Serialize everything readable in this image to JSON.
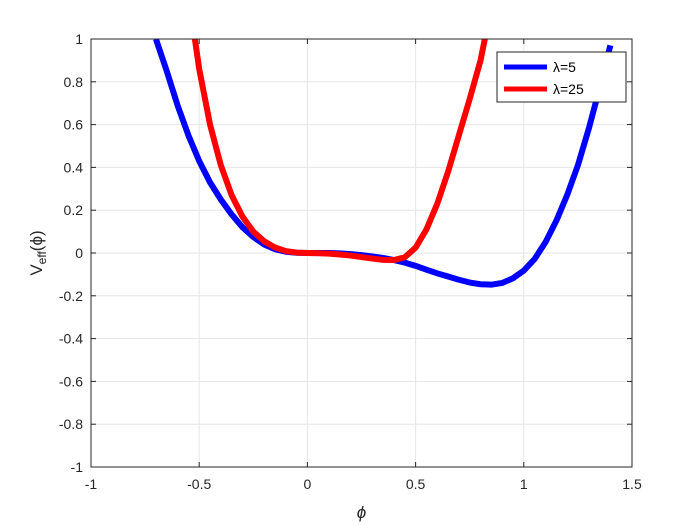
{
  "chart_data": {
    "type": "line",
    "xlabel": "ϕ",
    "ylabel_main": "V",
    "ylabel_sub": "eff",
    "ylabel_arg": "(ϕ)",
    "xlim": [
      -1,
      1.5
    ],
    "ylim": [
      -1,
      1
    ],
    "xticks": [
      -1,
      -0.5,
      0,
      0.5,
      1,
      1.5
    ],
    "xtick_labels": [
      "-1",
      "-0.5",
      "0",
      "0.5",
      "1",
      "1.5"
    ],
    "yticks": [
      -1,
      -0.8,
      -0.6,
      -0.4,
      -0.2,
      0,
      0.2,
      0.4,
      0.6,
      0.8,
      1
    ],
    "ytick_labels": [
      "-1",
      "-0.8",
      "-0.6",
      "-0.4",
      "-0.2",
      "0",
      "0.2",
      "0.4",
      "0.6",
      "0.8",
      "1"
    ],
    "grid": true,
    "legend_position": "top-right",
    "series": [
      {
        "name": "λ=5",
        "color": "#0000ff",
        "x": [
          -0.7,
          -0.65,
          -0.6,
          -0.55,
          -0.5,
          -0.45,
          -0.4,
          -0.35,
          -0.3,
          -0.25,
          -0.2,
          -0.15,
          -0.1,
          -0.05,
          0,
          0.05,
          0.1,
          0.15,
          0.2,
          0.25,
          0.3,
          0.35,
          0.4,
          0.45,
          0.5,
          0.55,
          0.6,
          0.65,
          0.7,
          0.75,
          0.8,
          0.85,
          0.9,
          0.95,
          1.0,
          1.05,
          1.1,
          1.15,
          1.2,
          1.25,
          1.3,
          1.35,
          1.4
        ],
        "y": [
          1.0,
          0.85,
          0.69,
          0.55,
          0.43,
          0.33,
          0.25,
          0.18,
          0.12,
          0.075,
          0.04,
          0.018,
          0.006,
          0.001,
          0.0,
          0.0,
          0.0,
          -0.002,
          -0.005,
          -0.01,
          -0.016,
          -0.023,
          -0.033,
          -0.045,
          -0.06,
          -0.078,
          -0.095,
          -0.11,
          -0.125,
          -0.138,
          -0.146,
          -0.148,
          -0.14,
          -0.118,
          -0.082,
          -0.028,
          0.05,
          0.15,
          0.27,
          0.41,
          0.58,
          0.77,
          0.97
        ]
      },
      {
        "name": "λ=25",
        "color": "#ff0000",
        "x": [
          -0.52,
          -0.5,
          -0.45,
          -0.4,
          -0.35,
          -0.3,
          -0.25,
          -0.2,
          -0.15,
          -0.1,
          -0.05,
          0,
          0.05,
          0.1,
          0.15,
          0.2,
          0.25,
          0.3,
          0.35,
          0.4,
          0.45,
          0.5,
          0.55,
          0.6,
          0.65,
          0.7,
          0.75,
          0.8,
          0.82
        ],
        "y": [
          1.0,
          0.86,
          0.6,
          0.41,
          0.27,
          0.17,
          0.1,
          0.055,
          0.026,
          0.009,
          0.002,
          0.0,
          -0.001,
          -0.003,
          -0.007,
          -0.012,
          -0.019,
          -0.026,
          -0.032,
          -0.033,
          -0.02,
          0.025,
          0.11,
          0.23,
          0.38,
          0.55,
          0.72,
          0.9,
          1.0
        ]
      }
    ]
  }
}
